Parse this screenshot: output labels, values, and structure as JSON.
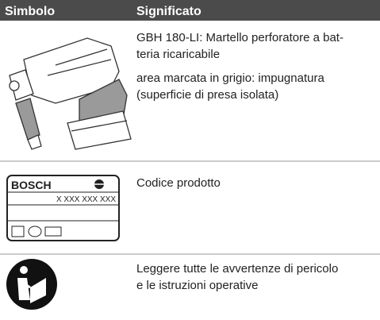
{
  "table": {
    "header": [
      "Simbolo",
      "Significato"
    ],
    "rows": [
      {
        "meaning": [
          [
            "GBH 180-LI: Martello perforatore a bat-",
            "teria ricaricabile"
          ],
          [
            "area marcata in grigio: impugnatura",
            "(superficie di presa isolata)"
          ]
        ]
      },
      {
        "symbol": {
          "brand": "BOSCH",
          "code": "X XXX XXX XXX"
        },
        "meaning": [
          [
            "Codice prodotto"
          ]
        ]
      },
      {
        "meaning": [
          [
            "Leggere tutte le avvertenze di pericolo",
            "e le istruzioni operative"
          ]
        ]
      }
    ]
  }
}
